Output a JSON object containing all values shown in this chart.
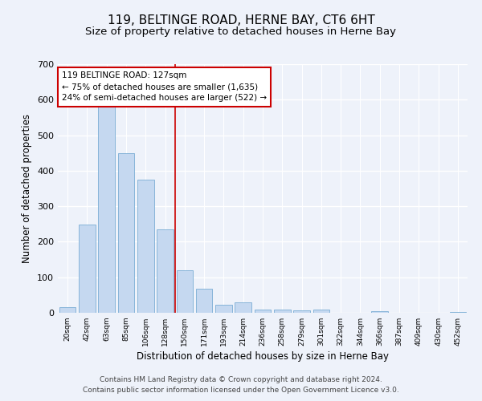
{
  "title": "119, BELTINGE ROAD, HERNE BAY, CT6 6HT",
  "subtitle": "Size of property relative to detached houses in Herne Bay",
  "xlabel": "Distribution of detached houses by size in Herne Bay",
  "ylabel": "Number of detached properties",
  "bar_labels": [
    "20sqm",
    "42sqm",
    "63sqm",
    "85sqm",
    "106sqm",
    "128sqm",
    "150sqm",
    "171sqm",
    "193sqm",
    "214sqm",
    "236sqm",
    "258sqm",
    "279sqm",
    "301sqm",
    "322sqm",
    "344sqm",
    "366sqm",
    "387sqm",
    "409sqm",
    "430sqm",
    "452sqm"
  ],
  "bar_values": [
    15,
    248,
    585,
    450,
    375,
    235,
    120,
    67,
    22,
    30,
    10,
    8,
    7,
    8,
    0,
    0,
    5,
    0,
    0,
    0,
    3
  ],
  "bar_color": "#c5d8f0",
  "bar_edgecolor": "#7aadd4",
  "ylim": [
    0,
    700
  ],
  "yticks": [
    0,
    100,
    200,
    300,
    400,
    500,
    600,
    700
  ],
  "vline_pos": 5.5,
  "annotation_text": "119 BELTINGE ROAD: 127sqm\n← 75% of detached houses are smaller (1,635)\n24% of semi-detached houses are larger (522) →",
  "annotation_box_color": "#ffffff",
  "annotation_box_edgecolor": "#cc0000",
  "vline_color": "#cc0000",
  "footnote1": "Contains HM Land Registry data © Crown copyright and database right 2024.",
  "footnote2": "Contains public sector information licensed under the Open Government Licence v3.0.",
  "background_color": "#eef2fa",
  "plot_bg_color": "#eef2fa",
  "grid_color": "#ffffff",
  "title_fontsize": 11,
  "subtitle_fontsize": 9.5,
  "xlabel_fontsize": 8.5,
  "ylabel_fontsize": 8.5,
  "footnote_fontsize": 6.5
}
